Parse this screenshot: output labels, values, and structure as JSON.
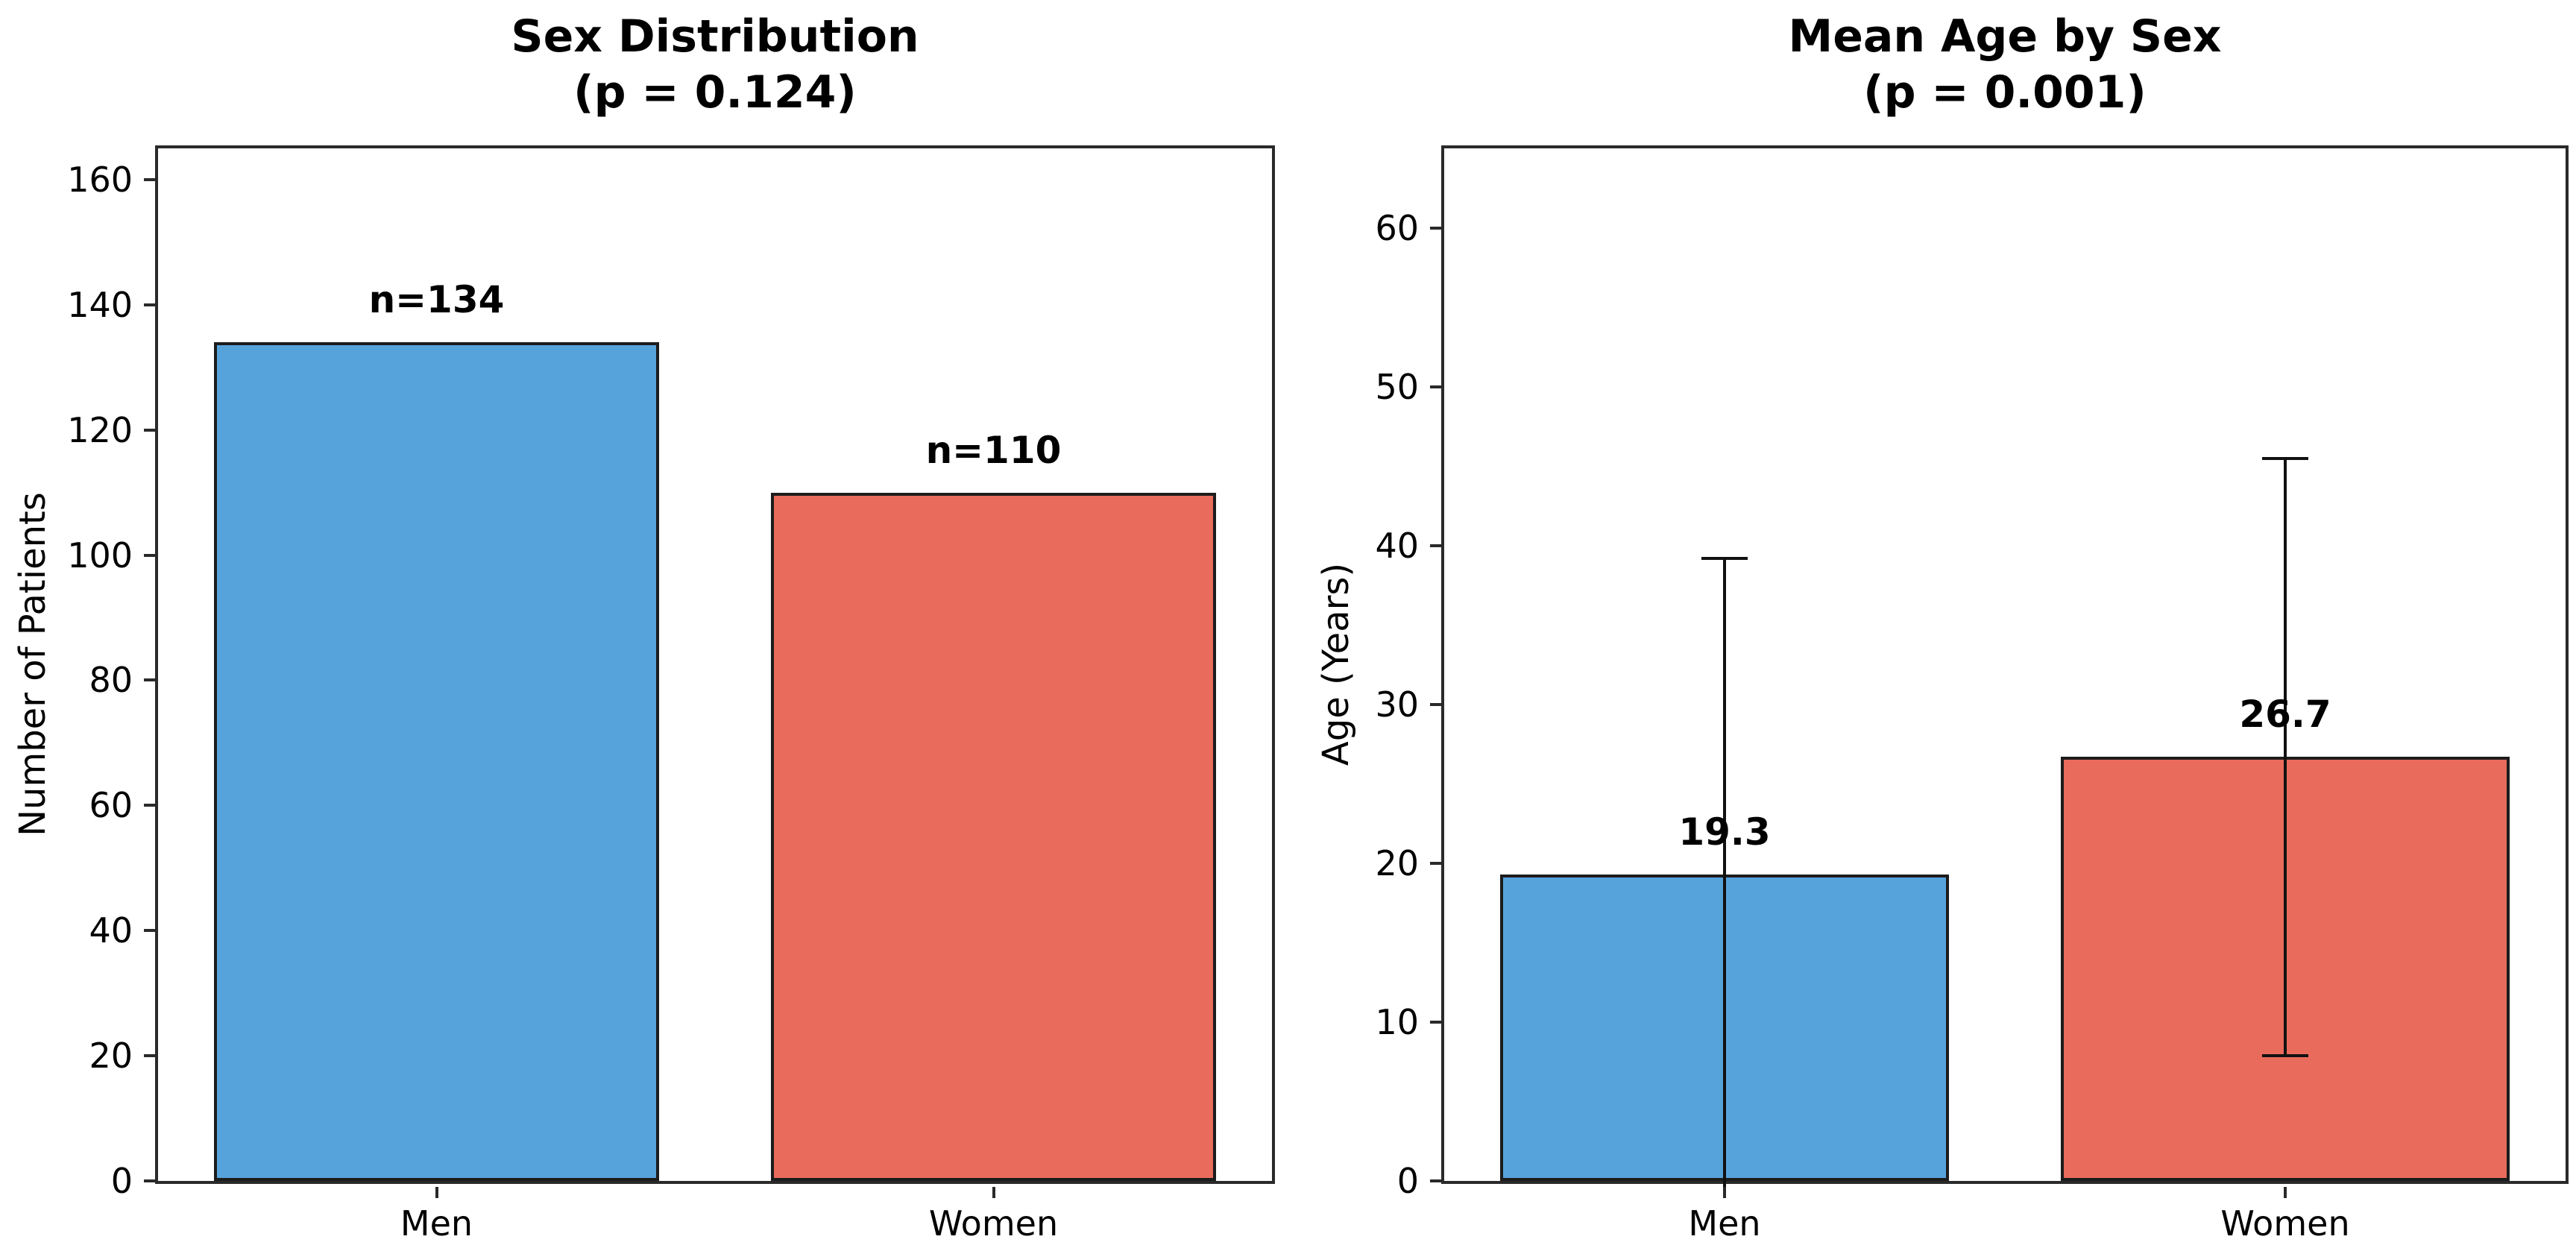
{
  "figure": {
    "background": "#ffffff",
    "text_color": "#000000",
    "axis_color": "#2a2a2a",
    "bar_edge_color": "#1c1c1c"
  },
  "chart_data": [
    {
      "type": "bar",
      "title_line1": "Sex Distribution",
      "title_line2": "(p = 0.124)",
      "ylabel": "Number of Patients",
      "xlabel": "",
      "categories": [
        "Men",
        "Women"
      ],
      "values": [
        134,
        110
      ],
      "bar_labels": [
        "n=134",
        "n=110"
      ],
      "bar_colors": [
        "#56a3dc",
        "#e96b5c"
      ],
      "yticks": [
        0,
        20,
        40,
        60,
        80,
        100,
        120,
        140,
        160
      ],
      "ylim": [
        0,
        165
      ],
      "errors": null,
      "grid": "off",
      "legend": "none"
    },
    {
      "type": "bar",
      "title_line1": "Mean Age by Sex",
      "title_line2": "(p = 0.001)",
      "ylabel": "Age (Years)",
      "xlabel": "",
      "categories": [
        "Men",
        "Women"
      ],
      "values": [
        19.3,
        26.7
      ],
      "bar_labels": [
        "19.3",
        "26.7"
      ],
      "bar_colors": [
        "#56a3dc",
        "#e96b5c"
      ],
      "yticks": [
        0,
        10,
        20,
        30,
        40,
        50,
        60
      ],
      "ylim": [
        0,
        65
      ],
      "errors": [
        19.9,
        18.8
      ],
      "grid": "off",
      "legend": "none"
    }
  ]
}
